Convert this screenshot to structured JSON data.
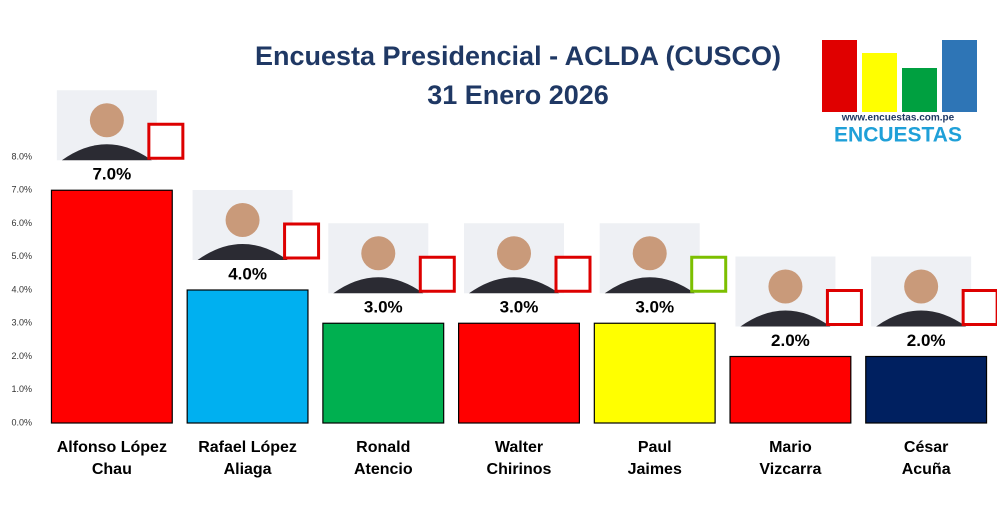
{
  "chart_data": {
    "type": "bar",
    "title": "Encuesta Presidencial - ACLDA (CUSCO)",
    "subtitle": "31 Enero 2026",
    "source": "www.encuestas.com.pe",
    "brand": "ENCUESTAS",
    "categories": [
      [
        "Alfonso López",
        "Chau"
      ],
      [
        "Rafael López",
        "Aliaga"
      ],
      [
        "Ronald",
        "Atencio"
      ],
      [
        "Walter",
        "Chirinos"
      ],
      [
        "Paul",
        "Jaimes"
      ],
      [
        "Mario",
        "Vizcarra"
      ],
      [
        "César",
        "Acuña"
      ]
    ],
    "values": [
      7,
      4,
      3,
      3,
      3,
      2,
      2
    ],
    "value_labels": [
      "7.0%",
      "4.0%",
      "3.0%",
      "3.0%",
      "3.0%",
      "2.0%",
      "2.0%"
    ],
    "colors": [
      "#ff0000",
      "#00b0f0",
      "#00b050",
      "#ff0000",
      "#ffff00",
      "#ff0000",
      "#002060"
    ],
    "ylim": [
      0,
      8
    ],
    "yticks": [
      {
        "value": 0,
        "label": "0.0%"
      },
      {
        "value": 1,
        "label": "1.0%"
      },
      {
        "value": 2,
        "label": "2.0%"
      },
      {
        "value": 3,
        "label": "3.0%"
      },
      {
        "value": 4,
        "label": "4.0%"
      },
      {
        "value": 5,
        "label": "5.0%"
      },
      {
        "value": 6,
        "label": "6.0%"
      },
      {
        "value": 7,
        "label": "7.0%"
      },
      {
        "value": 8,
        "label": "8.0%"
      }
    ],
    "grid": false
  }
}
